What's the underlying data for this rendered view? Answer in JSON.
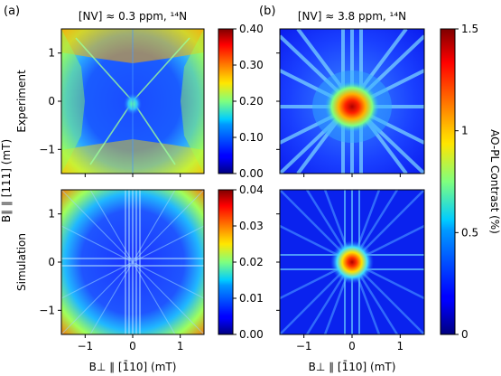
{
  "colors": {
    "jet_low": "#00007f",
    "jet_mid": "#7fff7f",
    "jet_high": "#7f0000"
  },
  "chart_data": [
    {
      "type": "heatmap",
      "panel": "(a)",
      "row": "Experiment",
      "title": "[NV] ≈ 0.3 ppm, ¹⁴N",
      "xlim": [
        -1.5,
        1.5
      ],
      "ylim": [
        -1.5,
        1.5
      ],
      "yticks": [
        "1",
        "0",
        "−1"
      ],
      "colorbar": {
        "range": [
          0,
          0.4
        ],
        "ticks": [
          "0.00",
          "0.10",
          "0.20",
          "0.30",
          "0.40"
        ]
      }
    },
    {
      "type": "heatmap",
      "panel": "(a)",
      "row": "Simulation",
      "xlim": [
        -1.5,
        1.5
      ],
      "ylim": [
        -1.5,
        1.5
      ],
      "xticks": [
        "−1",
        "0",
        "1"
      ],
      "yticks": [
        "1",
        "0",
        "−1"
      ],
      "colorbar": {
        "range": [
          0,
          0.04
        ],
        "ticks": [
          "0.00",
          "0.01",
          "0.02",
          "0.03",
          "0.04"
        ]
      }
    },
    {
      "type": "heatmap",
      "panel": "(b)",
      "row": "Experiment",
      "title": "[NV] ≈ 3.8 ppm, ¹⁴N",
      "xlim": [
        -1.5,
        1.5
      ],
      "ylim": [
        -1.5,
        1.5
      ]
    },
    {
      "type": "heatmap",
      "panel": "(b)",
      "row": "Simulation",
      "xlim": [
        -1.5,
        1.5
      ],
      "ylim": [
        -1.5,
        1.5
      ],
      "xticks": [
        "−1",
        "0",
        "1"
      ],
      "colorbar": {
        "range": [
          0,
          1.5
        ],
        "ticks": [
          "0",
          "0.5",
          "1",
          "1.5"
        ],
        "label": "AO-PL Contrast (%)"
      }
    }
  ],
  "labels": {
    "panel_a": "(a)",
    "panel_b": "(b)",
    "row_experiment": "Experiment",
    "row_simulation": "Simulation",
    "ylabel": "B∥ ∥ [111] (mT)",
    "xlabel_a": "B⊥ ∥ [1̄10] (mT)",
    "xlabel_b": "B⊥ ∥ [1̄10] (mT)"
  }
}
